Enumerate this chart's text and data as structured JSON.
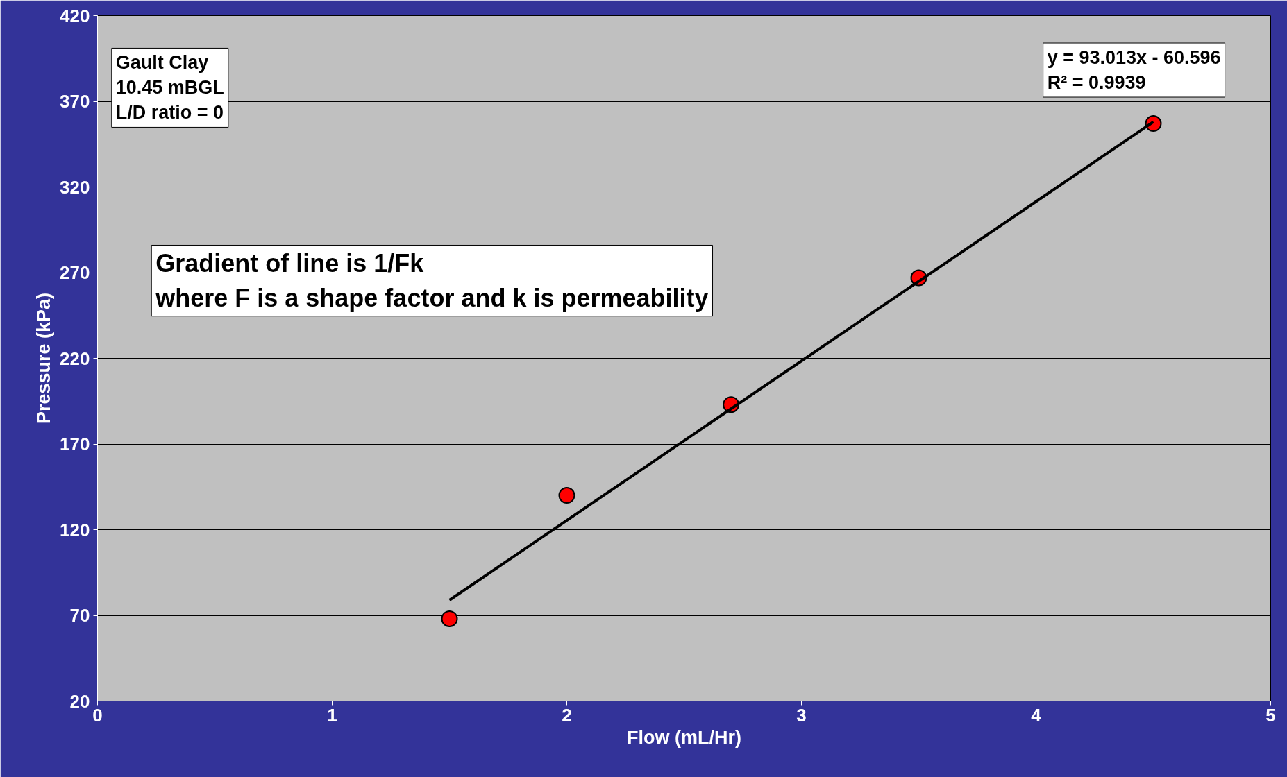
{
  "chart_data": {
    "type": "scatter",
    "xlabel": "Flow (mL/Hr)",
    "ylabel": "Pressure (kPa)",
    "xlim": [
      0,
      5
    ],
    "xticks": [
      0,
      1,
      2,
      3,
      4,
      5
    ],
    "ylim": [
      20,
      420
    ],
    "yticks": [
      20,
      70,
      120,
      170,
      220,
      270,
      320,
      370,
      420
    ],
    "grid": "y",
    "series": [
      {
        "marker": "circle",
        "color": "#ff0000",
        "x": [
          1.5,
          2.0,
          2.7,
          3.5,
          4.5
        ],
        "values": [
          68,
          140,
          193,
          267,
          357
        ]
      },
      {
        "type": "line",
        "marker": "none",
        "color": "#000000",
        "x": [
          1.5,
          4.5
        ],
        "values": [
          78.9,
          358.0
        ]
      }
    ],
    "annotations": [
      "Gault Clay\n10.45 mBGL\nL/D ratio = 0",
      "Gradient of line is 1/Fk\nwhere F is a shape factor and k is permeability",
      "y = 93.013x - 60.596\nR² = 0.9939"
    ]
  }
}
